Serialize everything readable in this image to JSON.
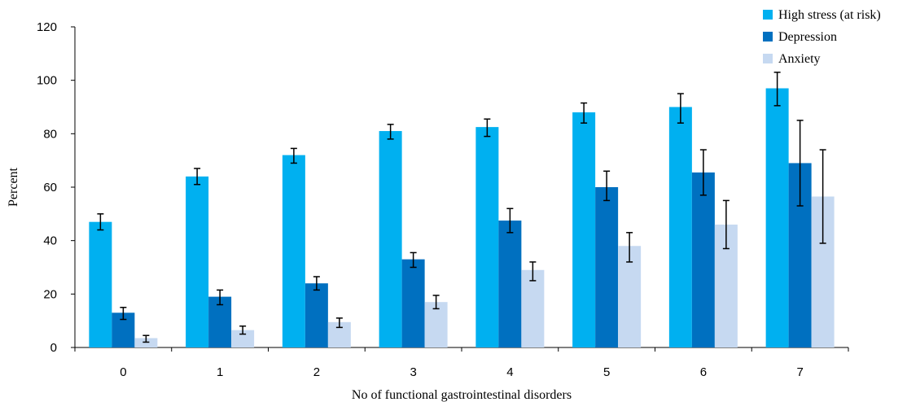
{
  "chart_data": {
    "type": "bar",
    "xlabel": "No of functional gastrointestinal disorders",
    "ylabel": "Percent",
    "ylim": [
      0,
      120
    ],
    "yticks": [
      0,
      20,
      40,
      60,
      80,
      100,
      120
    ],
    "categories": [
      "0",
      "1",
      "2",
      "3",
      "4",
      "5",
      "6",
      "7"
    ],
    "grid": false,
    "legend_position": "top-right",
    "series": [
      {
        "name": "High stress (at risk)",
        "color": "#00b0f0",
        "values": [
          47,
          64,
          72,
          81,
          82.5,
          88,
          90,
          97
        ],
        "error_low": [
          44,
          61,
          69,
          78,
          79,
          84,
          84,
          90.5
        ],
        "error_high": [
          50,
          67,
          74.5,
          83.5,
          85.5,
          91.5,
          95,
          103
        ]
      },
      {
        "name": "Depression",
        "color": "#0070c0",
        "values": [
          13,
          19,
          24,
          33,
          47.5,
          60,
          65.5,
          69
        ],
        "error_low": [
          10.5,
          16,
          21.5,
          30,
          43,
          55,
          57,
          53
        ],
        "error_high": [
          15,
          21.5,
          26.5,
          35.5,
          52,
          66,
          74,
          85
        ]
      },
      {
        "name": "Anxiety",
        "color": "#c6d9f1",
        "values": [
          3.5,
          6.5,
          9.5,
          17,
          29,
          38,
          46,
          56.5
        ],
        "error_low": [
          2,
          5,
          7.5,
          14.5,
          25,
          32,
          37,
          39
        ],
        "error_high": [
          4.5,
          8,
          11,
          19.5,
          32,
          43,
          55,
          74
        ]
      }
    ]
  }
}
